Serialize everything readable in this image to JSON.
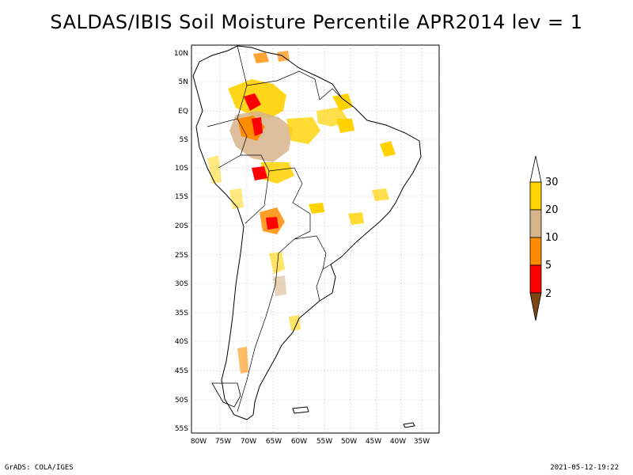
{
  "title": "SALDAS/IBIS Soil Moisture Percentile APR2014 lev = 1",
  "map": {
    "lon_range": [
      -80,
      -30
    ],
    "lat_range": [
      -56,
      11
    ],
    "lon_ticks": [
      "80W",
      "75W",
      "70W",
      "65W",
      "60W",
      "55W",
      "50W",
      "45W",
      "40W",
      "35W"
    ],
    "lat_ticks": [
      "10N",
      "5N",
      "EQ",
      "5S",
      "10S",
      "15S",
      "20S",
      "25S",
      "30S",
      "35S",
      "40S",
      "45S",
      "50S",
      "55S"
    ]
  },
  "legend": {
    "levels": [
      "30",
      "20",
      "10",
      "5",
      "2"
    ],
    "colors": {
      "above_30": "#ffffff",
      "20_30": "#ffd200",
      "10_20": "#d7b48c",
      "5_10": "#ff8c00",
      "2_5": "#ff0000",
      "below_2": "#7d4614"
    }
  },
  "footer": {
    "left": "GrADS: COLA/IGES",
    "right": "2021-05-12-19:22"
  }
}
